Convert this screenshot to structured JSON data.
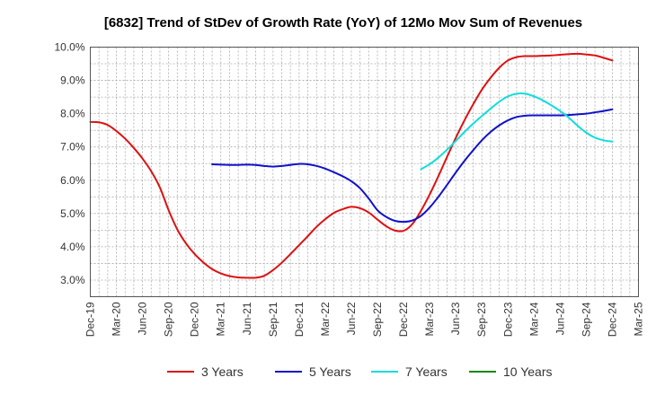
{
  "chart_data": {
    "type": "line",
    "title": "[6832]  Trend of StDev of Growth Rate (YoY) of 12Mo Mov Sum of Revenues",
    "xlabel": "",
    "ylabel": "",
    "ylim": [
      2.5,
      10.0
    ],
    "y_ticks": [
      3.0,
      4.0,
      5.0,
      6.0,
      7.0,
      8.0,
      9.0,
      10.0
    ],
    "y_tick_labels": [
      "3.0%",
      "4.0%",
      "5.0%",
      "6.0%",
      "7.0%",
      "8.0%",
      "9.0%",
      "10.0%"
    ],
    "x_tick_labels": [
      "Dec-19",
      "Mar-20",
      "Jun-20",
      "Sep-20",
      "Dec-20",
      "Mar-21",
      "Jun-21",
      "Sep-21",
      "Dec-21",
      "Mar-22",
      "Jun-22",
      "Sep-22",
      "Dec-22",
      "Mar-23",
      "Jun-23",
      "Sep-23",
      "Dec-23",
      "Mar-24",
      "Jun-24",
      "Sep-24",
      "Dec-24",
      "Mar-25"
    ],
    "x_note": "x values are months since Dec-19",
    "grid": true,
    "legend_position": "bottom",
    "series": [
      {
        "name": "3 Years",
        "color": "#dd1111",
        "x": [
          0,
          1,
          2,
          3,
          4,
          5,
          6,
          7,
          8,
          9,
          10,
          11,
          12,
          13,
          14,
          15,
          16,
          17,
          18,
          19,
          20,
          21,
          22,
          23,
          24,
          25,
          26,
          27,
          28,
          29,
          30,
          31,
          32,
          33,
          34,
          35,
          36,
          37,
          38,
          39,
          40,
          41,
          42,
          43,
          44,
          45,
          46,
          47,
          48,
          49,
          50,
          51,
          52,
          53,
          54,
          55,
          56,
          57,
          58,
          59,
          60
        ],
        "values": [
          7.75,
          7.74,
          7.66,
          7.48,
          7.25,
          6.97,
          6.65,
          6.27,
          5.78,
          5.1,
          4.52,
          4.1,
          3.78,
          3.53,
          3.33,
          3.2,
          3.12,
          3.08,
          3.07,
          3.07,
          3.13,
          3.3,
          3.52,
          3.78,
          4.05,
          4.32,
          4.6,
          4.83,
          5.02,
          5.13,
          5.2,
          5.16,
          5.03,
          4.82,
          4.62,
          4.49,
          4.48,
          4.68,
          5.08,
          5.57,
          6.12,
          6.7,
          7.27,
          7.8,
          8.28,
          8.72,
          9.08,
          9.38,
          9.6,
          9.7,
          9.73,
          9.73,
          9.74,
          9.75,
          9.77,
          9.79,
          9.8,
          9.78,
          9.75,
          9.68,
          9.6
        ]
      },
      {
        "name": "5 Years",
        "color": "#1111cc",
        "x": [
          14,
          15,
          16,
          17,
          18,
          19,
          20,
          21,
          22,
          23,
          24,
          25,
          26,
          27,
          28,
          29,
          30,
          31,
          32,
          33,
          34,
          35,
          36,
          37,
          38,
          39,
          40,
          41,
          42,
          43,
          44,
          45,
          46,
          47,
          48,
          49,
          50,
          51,
          52,
          53,
          54,
          55,
          56,
          57,
          58,
          59,
          60
        ],
        "values": [
          6.48,
          6.47,
          6.46,
          6.46,
          6.47,
          6.46,
          6.43,
          6.41,
          6.43,
          6.46,
          6.49,
          6.48,
          6.43,
          6.35,
          6.24,
          6.12,
          5.97,
          5.76,
          5.45,
          5.1,
          4.9,
          4.78,
          4.75,
          4.79,
          4.93,
          5.18,
          5.5,
          5.86,
          6.23,
          6.58,
          6.9,
          7.2,
          7.45,
          7.65,
          7.8,
          7.9,
          7.94,
          7.95,
          7.95,
          7.95,
          7.95,
          7.96,
          7.98,
          8.0,
          8.04,
          8.08,
          8.13
        ]
      },
      {
        "name": "7 Years",
        "color": "#11dddd",
        "x": [
          38,
          39,
          40,
          41,
          42,
          43,
          44,
          45,
          46,
          47,
          48,
          49,
          50,
          51,
          52,
          53,
          54,
          55,
          56,
          57,
          58,
          59,
          60
        ],
        "values": [
          6.33,
          6.48,
          6.68,
          6.92,
          7.18,
          7.45,
          7.7,
          7.93,
          8.15,
          8.36,
          8.52,
          8.6,
          8.6,
          8.52,
          8.4,
          8.25,
          8.08,
          7.88,
          7.64,
          7.43,
          7.28,
          7.2,
          7.16
        ]
      },
      {
        "name": "10 Years",
        "color": "#118811",
        "x": [],
        "values": []
      }
    ]
  }
}
